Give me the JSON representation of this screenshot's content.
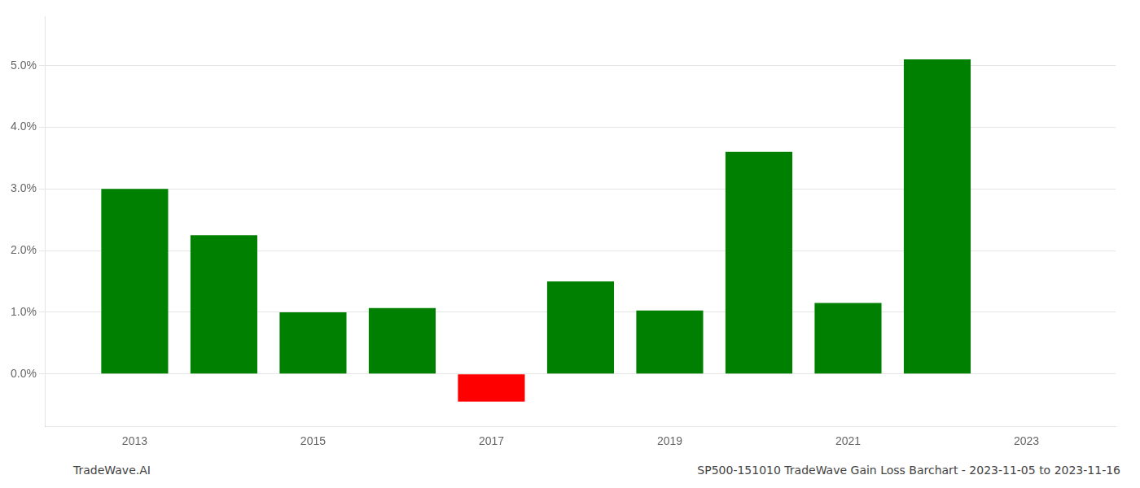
{
  "chart_data": {
    "type": "bar",
    "x": [
      2013,
      2014,
      2015,
      2016,
      2017,
      2018,
      2019,
      2020,
      2021,
      2022
    ],
    "values": [
      0.03,
      0.0225,
      0.01,
      0.0107,
      -0.0045,
      0.015,
      0.0103,
      0.036,
      0.0115,
      0.051
    ],
    "colors": [
      "#008000",
      "#008000",
      "#008000",
      "#008000",
      "#ff0000",
      "#008000",
      "#008000",
      "#008000",
      "#008000",
      "#008000"
    ],
    "xlim": [
      2012.0,
      2024.0
    ],
    "xticks": [
      2013,
      2015,
      2017,
      2019,
      2021,
      2023
    ],
    "ylim": [
      -0.0085,
      0.058
    ],
    "yticks": [
      {
        "value": 0.0,
        "label": "0.0%"
      },
      {
        "value": 0.01,
        "label": "1.0%"
      },
      {
        "value": 0.02,
        "label": "2.0%"
      },
      {
        "value": 0.03,
        "label": "3.0%"
      },
      {
        "value": 0.04,
        "label": "4.0%"
      },
      {
        "value": 0.05,
        "label": "5.0%"
      }
    ],
    "grid": true,
    "annotations": [
      "TradeWave.AI",
      "SP500-151010 TradeWave Gain Loss Barchart - 2023-11-05 to 2023-11-16"
    ]
  }
}
